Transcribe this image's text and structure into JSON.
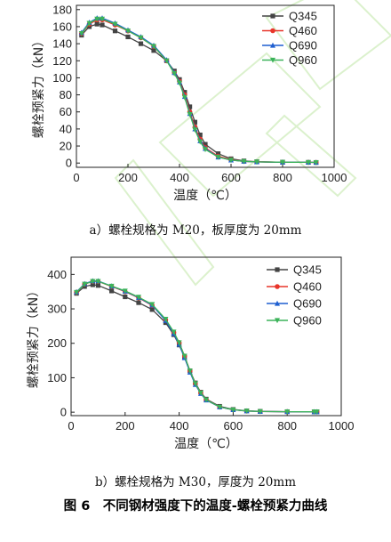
{
  "figure_title": "图 6　不同钢材强度下的温度-螺栓预紧力曲线",
  "chart_data": [
    {
      "type": "line",
      "caption": "a）螺栓规格为 M20，板厚度为 20mm",
      "xlabel": "温度（℃）",
      "ylabel": "螺栓预紧力（kN）",
      "xlim": [
        0,
        1000
      ],
      "ylim": [
        -5,
        185
      ],
      "xticks": [
        0,
        200,
        400,
        600,
        800,
        1000
      ],
      "yticks": [
        0,
        20,
        40,
        60,
        80,
        100,
        120,
        140,
        160,
        180
      ],
      "legend_position": "top-right",
      "grid": false,
      "series": [
        {
          "name": "Q345",
          "color": "#444444",
          "marker": "square",
          "x": [
            20,
            50,
            80,
            100,
            150,
            200,
            250,
            300,
            350,
            380,
            400,
            420,
            440,
            460,
            480,
            500,
            550,
            600,
            650,
            700,
            800,
            900,
            930
          ],
          "y": [
            150,
            160,
            163,
            162,
            155,
            148,
            140,
            132,
            120,
            108,
            98,
            83,
            66,
            48,
            33,
            22,
            11,
            5,
            2.5,
            1.5,
            1,
            0.8,
            0.7
          ]
        },
        {
          "name": "Q460",
          "color": "#e8352a",
          "marker": "circle",
          "x": [
            20,
            50,
            80,
            100,
            150,
            200,
            250,
            300,
            350,
            380,
            400,
            420,
            440,
            460,
            480,
            500,
            550,
            600,
            650,
            700,
            800,
            900,
            930
          ],
          "y": [
            152,
            163,
            168,
            168,
            162,
            155,
            147,
            137,
            120,
            106,
            96,
            80,
            60,
            42,
            28,
            18,
            8,
            4,
            2,
            1.5,
            1,
            0.8,
            0.7
          ]
        },
        {
          "name": "Q690",
          "color": "#1f5fd0",
          "marker": "triangle",
          "x": [
            20,
            50,
            80,
            100,
            150,
            200,
            250,
            300,
            350,
            380,
            400,
            420,
            440,
            460,
            480,
            500,
            550,
            600,
            650,
            700,
            800,
            900,
            930
          ],
          "y": [
            153,
            165,
            170,
            170,
            164,
            156,
            148,
            138,
            121,
            106,
            95,
            78,
            58,
            40,
            26,
            17,
            7,
            3.5,
            2,
            1.4,
            1,
            0.8,
            0.7
          ]
        },
        {
          "name": "Q960",
          "color": "#3cb35a",
          "marker": "triangle-down",
          "x": [
            20,
            50,
            80,
            100,
            150,
            200,
            250,
            300,
            350,
            380,
            400,
            420,
            440,
            460,
            480,
            500,
            550,
            600,
            650,
            700,
            800,
            900,
            930
          ],
          "y": [
            152,
            164,
            169,
            169,
            163,
            155,
            147,
            137,
            120,
            105,
            94,
            77,
            57,
            39,
            25,
            16,
            7,
            3.5,
            2,
            1.4,
            1,
            0.8,
            0.7
          ]
        }
      ]
    },
    {
      "type": "line",
      "caption": "b）螺栓规格为 M30，厚度为 20mm",
      "xlabel": "温度（℃）",
      "ylabel": "螺栓预紧力（kN）",
      "xlim": [
        0,
        1000
      ],
      "ylim": [
        -10,
        450
      ],
      "xticks": [
        0,
        200,
        400,
        600,
        800,
        1000
      ],
      "yticks": [
        0,
        100,
        200,
        300,
        400
      ],
      "legend_position": "top-right",
      "grid": false,
      "series": [
        {
          "name": "Q345",
          "color": "#444444",
          "marker": "square",
          "x": [
            20,
            50,
            80,
            100,
            150,
            200,
            250,
            300,
            350,
            380,
            400,
            420,
            440,
            460,
            480,
            500,
            550,
            600,
            650,
            700,
            800,
            900,
            910
          ],
          "y": [
            345,
            365,
            370,
            368,
            352,
            335,
            318,
            298,
            260,
            225,
            195,
            160,
            120,
            85,
            58,
            38,
            17,
            8,
            4,
            2.5,
            1.5,
            1,
            1
          ]
        },
        {
          "name": "Q460",
          "color": "#e8352a",
          "marker": "circle",
          "x": [
            20,
            50,
            80,
            100,
            150,
            200,
            250,
            300,
            350,
            380,
            400,
            420,
            440,
            460,
            480,
            500,
            550,
            600,
            650,
            700,
            800,
            900,
            910
          ],
          "y": [
            348,
            372,
            380,
            380,
            365,
            350,
            332,
            310,
            268,
            232,
            202,
            163,
            120,
            83,
            56,
            36,
            15,
            7,
            3.5,
            2,
            1.5,
            1,
            1
          ]
        },
        {
          "name": "Q690",
          "color": "#1f5fd0",
          "marker": "triangle",
          "x": [
            20,
            50,
            80,
            100,
            150,
            200,
            250,
            300,
            350,
            380,
            400,
            420,
            440,
            460,
            480,
            500,
            550,
            600,
            650,
            700,
            800,
            900,
            910
          ],
          "y": [
            349,
            373,
            381,
            381,
            366,
            351,
            333,
            311,
            266,
            228,
            197,
            158,
            116,
            80,
            54,
            35,
            15,
            7,
            3.5,
            2,
            1.5,
            1,
            1
          ]
        },
        {
          "name": "Q960",
          "color": "#3cb35a",
          "marker": "triangle-down",
          "x": [
            20,
            50,
            80,
            100,
            150,
            200,
            250,
            300,
            350,
            380,
            400,
            420,
            440,
            460,
            480,
            500,
            550,
            600,
            650,
            700,
            800,
            900,
            910
          ],
          "y": [
            348,
            372,
            380,
            380,
            366,
            352,
            334,
            313,
            270,
            233,
            202,
            163,
            120,
            83,
            56,
            36,
            15,
            7,
            3.5,
            2,
            1.5,
            1,
            1
          ]
        }
      ]
    }
  ]
}
